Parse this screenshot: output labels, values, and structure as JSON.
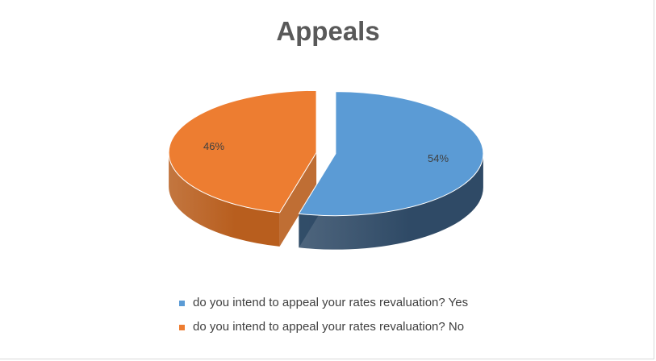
{
  "chart_data": {
    "type": "pie",
    "title": "Appeals",
    "three_d": true,
    "exploded": true,
    "legend_position": "bottom",
    "slices": [
      {
        "label": "do you intend to appeal your rates revaluation? Yes",
        "value": 54,
        "data_label": "54%",
        "color": "#5b9bd5",
        "side_color": "#2f4a66"
      },
      {
        "label": "do you intend to appeal your rates revaluation? No",
        "value": 46,
        "data_label": "46%",
        "color": "#ed7d31",
        "side_color": "#b85e1e"
      }
    ]
  }
}
